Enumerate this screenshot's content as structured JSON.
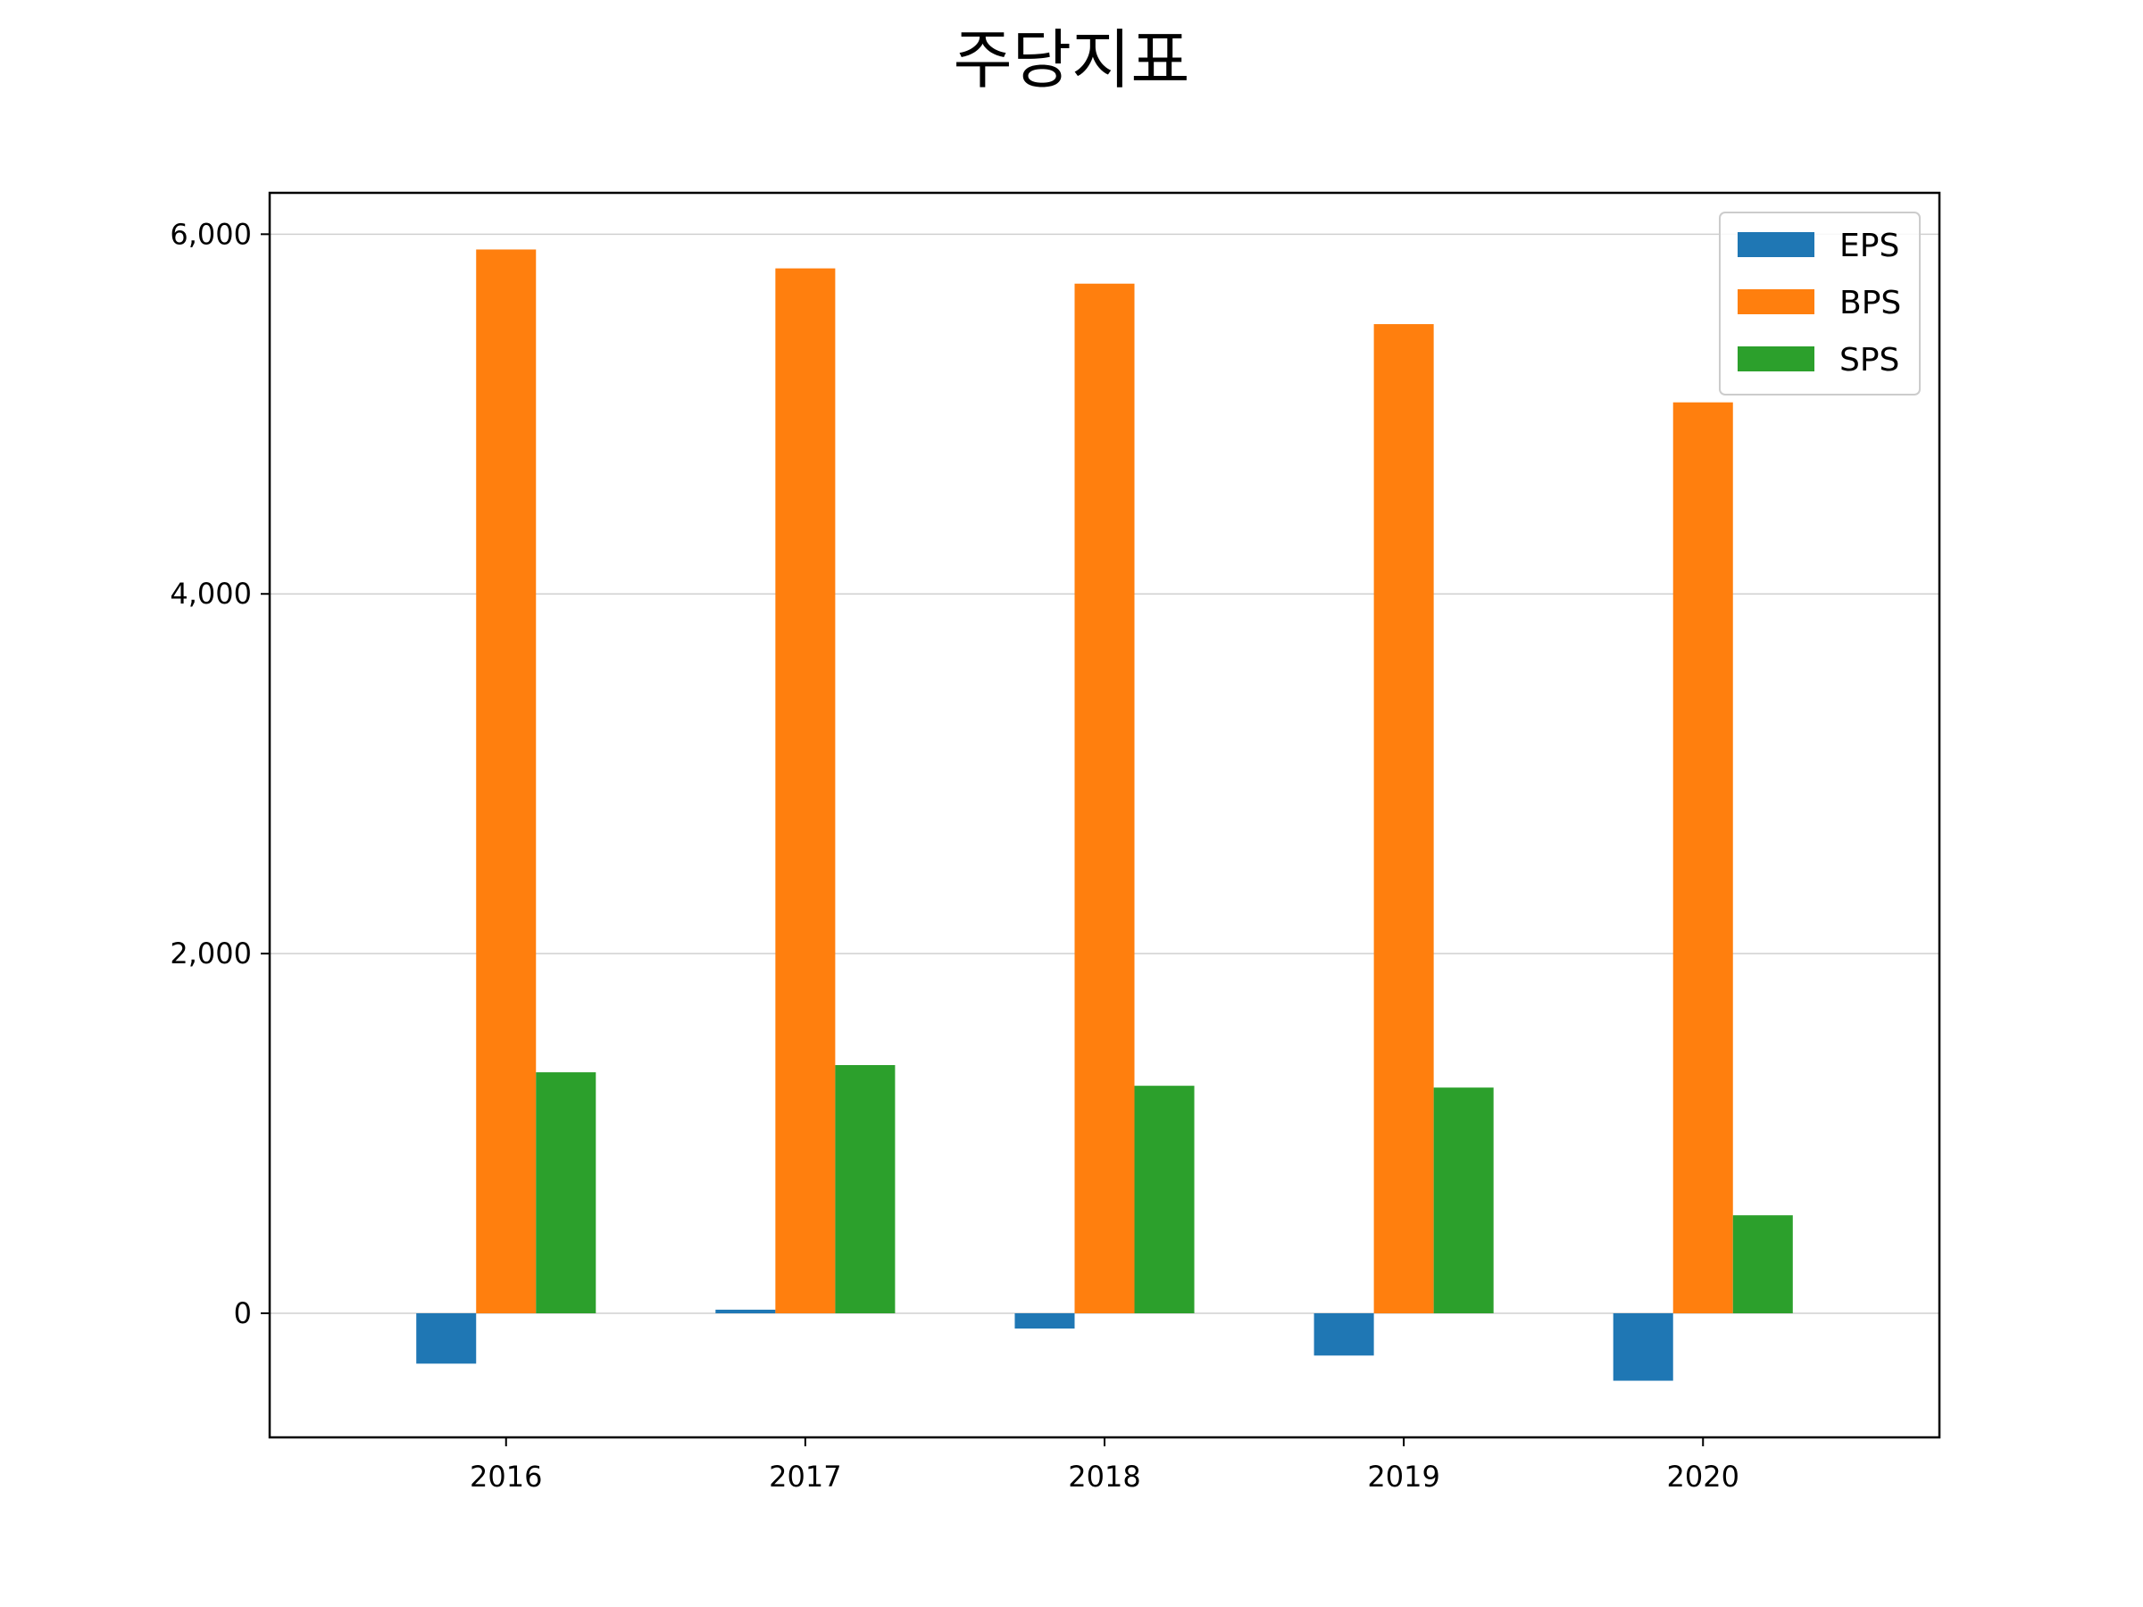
{
  "chart_data": {
    "type": "bar",
    "title": "주당지표",
    "xlabel": "",
    "ylabel": "",
    "categories": [
      "2016",
      "2017",
      "2018",
      "2019",
      "2020"
    ],
    "series": [
      {
        "name": "EPS",
        "color": "#1f77b4",
        "values": [
          -280,
          20,
          -85,
          -235,
          -375
        ]
      },
      {
        "name": "BPS",
        "color": "#ff7f0e",
        "values": [
          5915,
          5810,
          5725,
          5500,
          5065
        ]
      },
      {
        "name": "SPS",
        "color": "#2ca02c",
        "values": [
          1340,
          1380,
          1265,
          1255,
          545
        ]
      }
    ],
    "ylim": [
      -690,
      6230
    ],
    "yticks": [
      0,
      2000,
      4000,
      6000
    ],
    "ytick_labels": [
      "0",
      "2,000",
      "4,000",
      "6,000"
    ],
    "grid": "horizontal",
    "legend_position": "top-right"
  }
}
